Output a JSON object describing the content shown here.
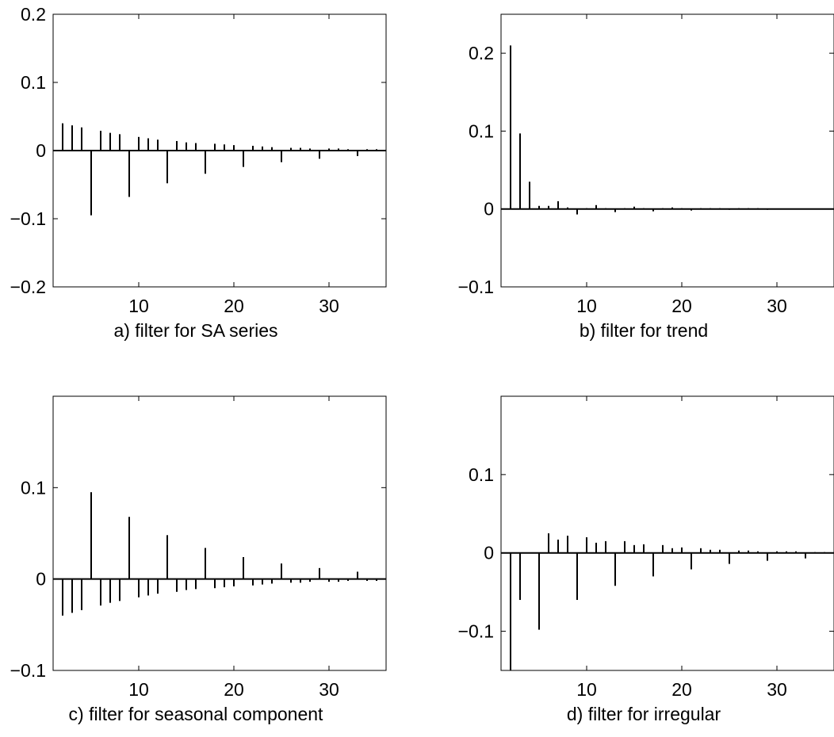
{
  "chart_data": [
    {
      "type": "bar",
      "caption": "a) filter for SA series",
      "xlim": [
        1,
        36
      ],
      "ylim": [
        -0.2,
        0.2
      ],
      "xticks": [
        10,
        20,
        30
      ],
      "yticks": [
        -0.2,
        -0.1,
        0,
        0.1,
        0.2
      ],
      "ytick_labels": [
        "−0.2",
        "−0.1",
        "0",
        "0.1",
        "0.2"
      ],
      "x": [
        2,
        3,
        4,
        5,
        6,
        7,
        8,
        9,
        10,
        11,
        12,
        13,
        14,
        15,
        16,
        17,
        18,
        19,
        20,
        21,
        22,
        23,
        24,
        25,
        26,
        27,
        28,
        29,
        30,
        31,
        32,
        33,
        34,
        35
      ],
      "values": [
        0.04,
        0.037,
        0.034,
        -0.095,
        0.029,
        0.026,
        0.024,
        -0.068,
        0.02,
        0.018,
        0.016,
        -0.048,
        0.014,
        0.012,
        0.011,
        -0.034,
        0.01,
        0.009,
        0.008,
        -0.024,
        0.007,
        0.006,
        0.005,
        -0.017,
        0.004,
        0.004,
        0.003,
        -0.012,
        0.003,
        0.003,
        0.002,
        -0.008,
        0.002,
        0.002
      ]
    },
    {
      "type": "bar",
      "caption": "b)  filter for trend",
      "xlim": [
        1,
        36
      ],
      "ylim": [
        -0.1,
        0.25
      ],
      "xticks": [
        10,
        20,
        30
      ],
      "yticks": [
        -0.1,
        0,
        0.1,
        0.2
      ],
      "ytick_labels": [
        "−0.1",
        "0",
        "0.1",
        "0.2"
      ],
      "x": [
        2,
        3,
        4,
        5,
        6,
        7,
        8,
        9,
        10,
        11,
        12,
        13,
        14,
        15,
        16,
        17,
        18,
        19,
        20,
        21,
        22,
        23,
        24,
        25,
        26,
        27,
        28,
        29,
        30,
        31,
        32,
        33,
        34,
        35
      ],
      "values": [
        0.21,
        0.097,
        0.035,
        0.004,
        0.004,
        0.01,
        0.002,
        -0.007,
        0.001,
        0.005,
        0.001,
        -0.004,
        0.001,
        0.003,
        0.001,
        -0.003,
        0.001,
        0.002,
        0.001,
        -0.002,
        0.001,
        0.001,
        0.001,
        -0.001,
        0.001,
        0.001,
        0.001,
        -0.001,
        0.0005,
        0.0005,
        0.0005,
        -0.0005,
        0.0005,
        0.0005
      ]
    },
    {
      "type": "bar",
      "caption": "c)  filter for seasonal component",
      "xlim": [
        1,
        36
      ],
      "ylim": [
        -0.1,
        0.2
      ],
      "xticks": [
        10,
        20,
        30
      ],
      "yticks": [
        -0.1,
        0,
        0.1
      ],
      "ytick_labels": [
        "−0.1",
        "0",
        "0.1"
      ],
      "x": [
        2,
        3,
        4,
        5,
        6,
        7,
        8,
        9,
        10,
        11,
        12,
        13,
        14,
        15,
        16,
        17,
        18,
        19,
        20,
        21,
        22,
        23,
        24,
        25,
        26,
        27,
        28,
        29,
        30,
        31,
        32,
        33,
        34,
        35
      ],
      "values": [
        -0.04,
        -0.037,
        -0.034,
        0.095,
        -0.029,
        -0.026,
        -0.024,
        0.068,
        -0.02,
        -0.018,
        -0.016,
        0.048,
        -0.014,
        -0.012,
        -0.011,
        0.034,
        -0.01,
        -0.009,
        -0.008,
        0.024,
        -0.007,
        -0.006,
        -0.005,
        0.017,
        -0.004,
        -0.004,
        -0.003,
        0.012,
        -0.003,
        -0.003,
        -0.002,
        0.008,
        -0.002,
        -0.002
      ]
    },
    {
      "type": "bar",
      "caption": "d)  filter for irregular",
      "xlim": [
        1,
        36
      ],
      "ylim": [
        -0.15,
        0.2
      ],
      "xticks": [
        10,
        20,
        30
      ],
      "yticks": [
        -0.1,
        0,
        0.1
      ],
      "ytick_labels": [
        "−0.1",
        "0",
        "0.1"
      ],
      "x": [
        2,
        3,
        4,
        5,
        6,
        7,
        8,
        9,
        10,
        11,
        12,
        13,
        14,
        15,
        16,
        17,
        18,
        19,
        20,
        21,
        22,
        23,
        24,
        25,
        26,
        27,
        28,
        29,
        30,
        31,
        32,
        33,
        34,
        35
      ],
      "values": [
        -0.15,
        -0.06,
        0,
        -0.098,
        0.025,
        0.017,
        0.022,
        -0.06,
        0.02,
        0.013,
        0.015,
        -0.042,
        0.015,
        0.01,
        0.011,
        -0.03,
        0.01,
        0.006,
        0.007,
        -0.021,
        0.006,
        0.004,
        0.004,
        -0.014,
        0.003,
        0.003,
        0.002,
        -0.01,
        0.002,
        0.002,
        0.002,
        -0.007,
        0.001,
        0.001
      ]
    }
  ]
}
